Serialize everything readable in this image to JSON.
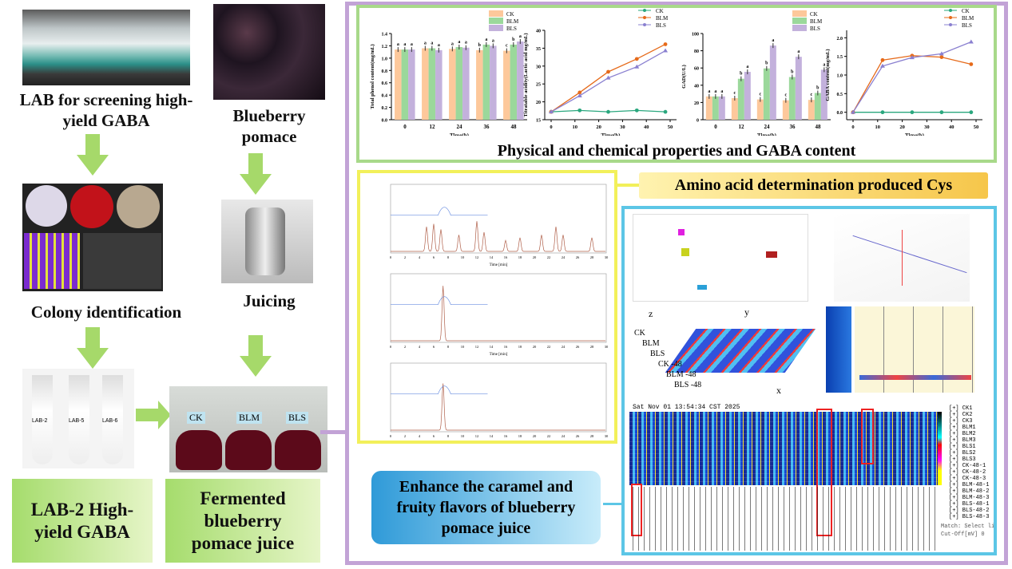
{
  "left": {
    "step1": "LAB for screening high-yield GABA",
    "step2": "Colony identification",
    "tubes": [
      "LAB-2",
      "LAB-5",
      "LAB-6"
    ],
    "result": "LAB-2 High-yield GABA"
  },
  "middle": {
    "step1": "Blueberry pomace",
    "step2": "Juicing",
    "flask_labels": [
      "CK",
      "BLM",
      "BLS"
    ],
    "result": "Fermented blueberry pomace juice"
  },
  "green_section": {
    "title": "Physical and chemical properties and GABA content"
  },
  "yellow_section": {
    "title": "Amino acid determination produced Cys",
    "time_axis": "Time [min]"
  },
  "blue_section": {
    "title": "Enhance the caramel and fruity flavors of blueberry pomace juice",
    "waterfall": {
      "axes": [
        "z",
        "y",
        "x"
      ],
      "samples": [
        "CK",
        "BLM",
        "BLS",
        "CK -48",
        "BLM -48",
        "BLS -48"
      ]
    },
    "heatmap": {
      "timestamp": "Sat Nov 01 13:54:34 CST 2025",
      "samples": [
        "CK1",
        "CK2",
        "CK3",
        "BLM1",
        "BLM2",
        "BLM3",
        "BLS1",
        "BLS2",
        "BLS3",
        "CK-48-1",
        "CK-48-2",
        "CK-48-3",
        "BLM-48-1",
        "BLM-48-2",
        "BLM-48-3",
        "BLS-48-1",
        "BLS-48-2",
        "BLS-48-3"
      ],
      "match": "Match: Select line",
      "cutoff": "Cut-Off[mV] 0"
    }
  },
  "colors": {
    "CK_bar": "#fdc89b",
    "BLM_bar": "#9bd89b",
    "BLS_bar": "#c3b1dc",
    "CK_line": "#2aa77e",
    "BLM_line": "#e66a1a",
    "BLS_line": "#8a80d0",
    "green_frame": "#a8d98a",
    "purple_frame": "#c2a3d6",
    "yellow_frame": "#f2f05a",
    "cyan_frame": "#5cc6e6"
  },
  "chart_data": [
    {
      "type": "bar",
      "xlabel": "Time(h)",
      "ylabel": "Total phenol content(mg/mL)",
      "categories": [
        "0",
        "12",
        "24",
        "36",
        "48"
      ],
      "ylim": [
        0,
        1.4
      ],
      "yticks": [
        0,
        0.2,
        0.4,
        0.6,
        0.8,
        1.0,
        1.2,
        1.4
      ],
      "legend": "top-right",
      "series": [
        {
          "name": "CK",
          "values": [
            1.14,
            1.16,
            1.15,
            1.13,
            1.12
          ],
          "letters": [
            "a",
            "a",
            "a",
            "b",
            "c"
          ]
        },
        {
          "name": "BLM",
          "values": [
            1.14,
            1.16,
            1.18,
            1.22,
            1.22
          ],
          "letters": [
            "a",
            "a",
            "a",
            "a",
            "b"
          ]
        },
        {
          "name": "BLS",
          "values": [
            1.14,
            1.13,
            1.17,
            1.2,
            1.27
          ],
          "letters": [
            "a",
            "a",
            "a",
            "a",
            "a"
          ]
        }
      ]
    },
    {
      "type": "line",
      "xlabel": "Time(h)",
      "ylabel": "Titratable acidity(Lactic acid mg/mL)",
      "x": [
        0,
        12,
        24,
        36,
        48
      ],
      "xlim": [
        0,
        50
      ],
      "xticks": [
        0,
        10,
        20,
        30,
        40,
        50
      ],
      "ylim": [
        15,
        40
      ],
      "yticks": [
        15,
        20,
        25,
        30,
        35,
        40
      ],
      "legend": "top-right",
      "series": [
        {
          "name": "CK",
          "values": [
            17.2,
            17.6,
            17.2,
            17.6,
            17.2
          ]
        },
        {
          "name": "BLM",
          "values": [
            17.2,
            22.6,
            28.4,
            32,
            36.1
          ]
        },
        {
          "name": "BLS",
          "values": [
            17.2,
            21.7,
            26.7,
            29.8,
            34.3
          ]
        }
      ]
    },
    {
      "type": "bar",
      "xlabel": "Time(h)",
      "ylabel": "GAD(U/L)",
      "categories": [
        "0",
        "12",
        "24",
        "36",
        "48"
      ],
      "ylim": [
        0,
        100
      ],
      "yticks": [
        0,
        20,
        40,
        60,
        80,
        100
      ],
      "legend": "top-right",
      "series": [
        {
          "name": "CK",
          "values": [
            27,
            25,
            23.5,
            22.5,
            23
          ],
          "letters": [
            "a",
            "c",
            "c",
            "c",
            "c"
          ]
        },
        {
          "name": "BLM",
          "values": [
            27,
            47.5,
            59.5,
            49.5,
            31
          ],
          "letters": [
            "a",
            "b",
            "b",
            "b",
            "b"
          ]
        },
        {
          "name": "BLS",
          "values": [
            27,
            55.5,
            86,
            73,
            58
          ],
          "letters": [
            "a",
            "a",
            "a",
            "a",
            "a"
          ]
        }
      ]
    },
    {
      "type": "line",
      "xlabel": "Time(h)",
      "ylabel": "GABA content(mg/mL)",
      "x": [
        0,
        12,
        24,
        36,
        48
      ],
      "xlim": [
        0,
        50
      ],
      "xticks": [
        0,
        10,
        20,
        30,
        40,
        50
      ],
      "ylim": [
        -0.2,
        2.2
      ],
      "yticks": [
        0,
        0.5,
        1.0,
        1.5,
        2.0
      ],
      "legend": "top-right",
      "series": [
        {
          "name": "CK",
          "values": [
            0,
            0,
            0,
            0,
            0
          ]
        },
        {
          "name": "BLM",
          "values": [
            0,
            1.4,
            1.52,
            1.48,
            1.29
          ]
        },
        {
          "name": "BLS",
          "values": [
            0,
            1.24,
            1.47,
            1.57,
            1.89
          ]
        }
      ]
    }
  ]
}
